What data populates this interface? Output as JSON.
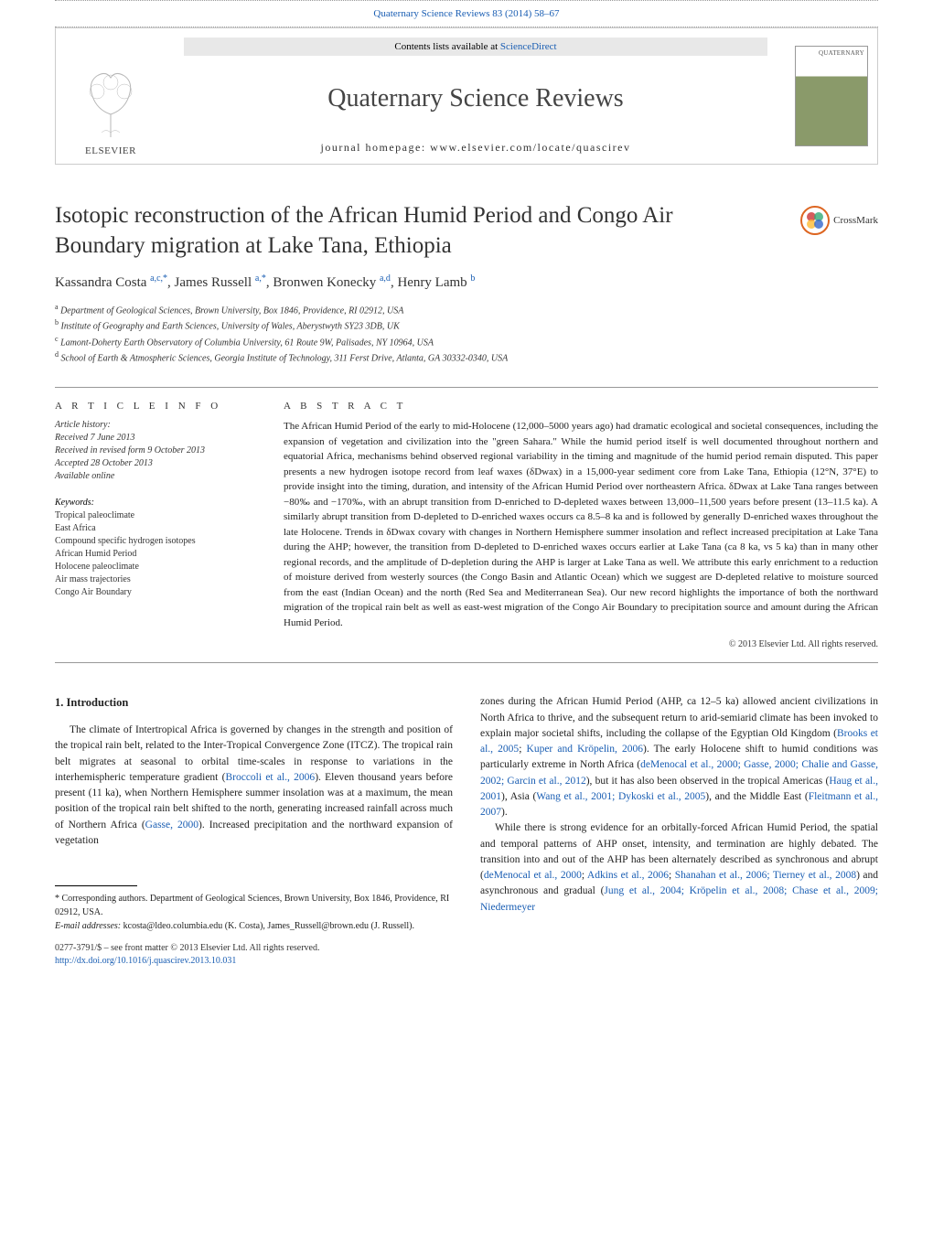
{
  "header": {
    "citation": "Quaternary Science Reviews 83 (2014) 58–67",
    "contents_prefix": "Contents lists available at ",
    "contents_link": "ScienceDirect",
    "journal_title": "Quaternary Science Reviews",
    "homepage_prefix": "journal homepage: ",
    "homepage_url": "www.elsevier.com/locate/quascirev",
    "elsevier": "ELSEVIER",
    "cover_label": "QUATERNARY",
    "crossmark": "CrossMark"
  },
  "article": {
    "title": "Isotopic reconstruction of the African Humid Period and Congo Air Boundary migration at Lake Tana, Ethiopia",
    "authors_html": "Kassandra Costa <sup>a,c,*</sup>, James Russell <sup>a,*</sup>, Bronwen Konecky <sup>a,d</sup>, Henry Lamb <sup>b</sup>",
    "affiliations": [
      {
        "sup": "a",
        "text": "Department of Geological Sciences, Brown University, Box 1846, Providence, RI 02912, USA"
      },
      {
        "sup": "b",
        "text": "Institute of Geography and Earth Sciences, University of Wales, Aberystwyth SY23 3DB, UK"
      },
      {
        "sup": "c",
        "text": "Lamont-Doherty Earth Observatory of Columbia University, 61 Route 9W, Palisades, NY 10964, USA"
      },
      {
        "sup": "d",
        "text": "School of Earth & Atmospheric Sciences, Georgia Institute of Technology, 311 Ferst Drive, Atlanta, GA 30332-0340, USA"
      }
    ]
  },
  "info": {
    "heading": "A R T I C L E   I N F O",
    "history_label": "Article history:",
    "received": "Received 7 June 2013",
    "revised": "Received in revised form 9 October 2013",
    "accepted": "Accepted 28 October 2013",
    "available": "Available online",
    "keywords_label": "Keywords:",
    "keywords": [
      "Tropical paleoclimate",
      "East Africa",
      "Compound specific hydrogen isotopes",
      "African Humid Period",
      "Holocene paleoclimate",
      "Air mass trajectories",
      "Congo Air Boundary"
    ]
  },
  "abstract": {
    "heading": "A B S T R A C T",
    "text": "The African Humid Period of the early to mid-Holocene (12,000–5000 years ago) had dramatic ecological and societal consequences, including the expansion of vegetation and civilization into the \"green Sahara.\" While the humid period itself is well documented throughout northern and equatorial Africa, mechanisms behind observed regional variability in the timing and magnitude of the humid period remain disputed. This paper presents a new hydrogen isotope record from leaf waxes (δDwax) in a 15,000-year sediment core from Lake Tana, Ethiopia (12°N, 37°E) to provide insight into the timing, duration, and intensity of the African Humid Period over northeastern Africa. δDwax at Lake Tana ranges between −80‰ and −170‰, with an abrupt transition from D-enriched to D-depleted waxes between 13,000–11,500 years before present (13–11.5 ka). A similarly abrupt transition from D-depleted to D-enriched waxes occurs ca 8.5–8 ka and is followed by generally D-enriched waxes throughout the late Holocene. Trends in δDwax covary with changes in Northern Hemisphere summer insolation and reflect increased precipitation at Lake Tana during the AHP; however, the transition from D-depleted to D-enriched waxes occurs earlier at Lake Tana (ca 8 ka, vs 5 ka) than in many other regional records, and the amplitude of D-depletion during the AHP is larger at Lake Tana as well. We attribute this early enrichment to a reduction of moisture derived from westerly sources (the Congo Basin and Atlantic Ocean) which we suggest are D-depleted relative to moisture sourced from the east (Indian Ocean) and the north (Red Sea and Mediterranean Sea). Our new record highlights the importance of both the northward migration of the tropical rain belt as well as east-west migration of the Congo Air Boundary to precipitation source and amount during the African Humid Period.",
    "copyright": "© 2013 Elsevier Ltd. All rights reserved."
  },
  "intro": {
    "heading": "1. Introduction",
    "para1_pre": "The climate of Intertropical Africa is governed by changes in the strength and position of the tropical rain belt, related to the Inter-Tropical Convergence Zone (ITCZ). The tropical rain belt migrates at seasonal to orbital time-scales in response to variations in the interhemispheric temperature gradient (",
    "para1_ref1": "Broccoli et al., 2006",
    "para1_mid": "). Eleven thousand years before present (11 ka), when Northern Hemisphere summer insolation was at a maximum, the mean position of the tropical rain belt shifted to the north, generating increased rainfall across much of Northern Africa (",
    "para1_ref2": "Gasse, 2000",
    "para1_end": "). Increased precipitation and the northward expansion of vegetation",
    "para2_pre": "zones during the African Humid Period (AHP, ca 12–5 ka) allowed ancient civilizations in North Africa to thrive, and the subsequent return to arid-semiarid climate has been invoked to explain major societal shifts, including the collapse of the Egyptian Old Kingdom (",
    "para2_ref1": "Brooks et al., 2005",
    "para2_sep1": "; ",
    "para2_ref2": "Kuper and Kröpelin, 2006",
    "para2_mid1": "). The early Holocene shift to humid conditions was particularly extreme in North Africa (",
    "para2_ref3": "deMenocal et al., 2000; Gasse, 2000; Chalie and Gasse, 2002; Garcin et al., 2012",
    "para2_mid2": "), but it has also been observed in the tropical Americas (",
    "para2_ref4": "Haug et al., 2001",
    "para2_mid3": "), Asia (",
    "para2_ref5": "Wang et al., 2001; Dykoski et al., 2005",
    "para2_mid4": "), and the Middle East (",
    "para2_ref6": "Fleitmann et al., 2007",
    "para2_end": ").",
    "para3_pre": "While there is strong evidence for an orbitally-forced African Humid Period, the spatial and temporal patterns of AHP onset, intensity, and termination are highly debated. The transition into and out of the AHP has been alternately described as synchronous and abrupt (",
    "para3_ref1": "deMenocal et al., 2000",
    "para3_sep1": "; ",
    "para3_ref2": "Adkins et al., 2006",
    "para3_sep2": "; ",
    "para3_ref3": "Shanahan et al., 2006; Tierney et al., 2008",
    "para3_mid": ") and asynchronous and gradual (",
    "para3_ref4": "Jung et al., 2004; Kröpelin et al., 2008; Chase et al., 2009; Niedermeyer"
  },
  "footnotes": {
    "corresponding": "* Corresponding authors. Department of Geological Sciences, Brown University, Box 1846, Providence, RI 02912, USA.",
    "email_label": "E-mail addresses: ",
    "email1": "kcosta@ldeo.columbia.edu",
    "email1_name": " (K. Costa), ",
    "email2": "James_Russell@brown.edu",
    "email2_name": " (J. Russell)."
  },
  "footer": {
    "issn": "0277-3791/$ – see front matter © 2013 Elsevier Ltd. All rights reserved.",
    "doi": "http://dx.doi.org/10.1016/j.quascirev.2013.10.031"
  },
  "colors": {
    "link": "#1a5eb3",
    "text": "#222",
    "muted": "#333"
  }
}
